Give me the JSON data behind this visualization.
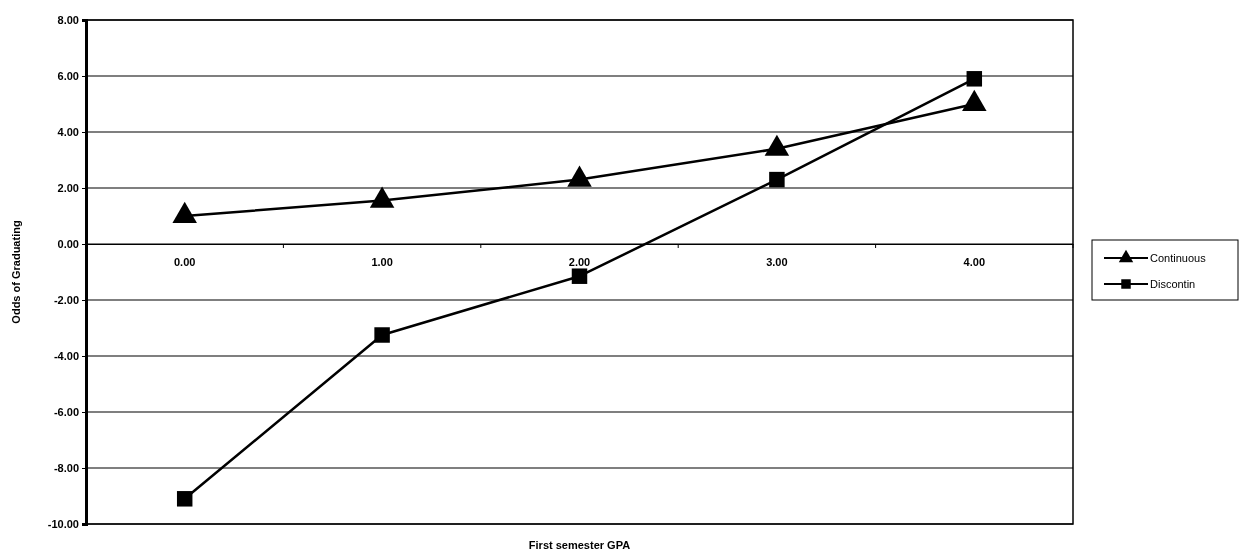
{
  "chart_data": {
    "type": "line",
    "xlabel": "First semester GPA",
    "ylabel": "Odds of Graduating",
    "categories": [
      "0.00",
      "1.00",
      "2.00",
      "3.00",
      "4.00"
    ],
    "series": [
      {
        "name": "Continuous",
        "color": "#000000",
        "marker": "triangle",
        "values": [
          1.0,
          1.55,
          2.3,
          3.4,
          5.0
        ]
      },
      {
        "name": "Discontin",
        "color": "#000000",
        "marker": "square",
        "values": [
          -9.1,
          -3.25,
          -1.15,
          2.3,
          5.9
        ]
      }
    ],
    "ylim": [
      -10,
      8
    ],
    "yticks": [
      {
        "value": -10,
        "label": "-10.00"
      },
      {
        "value": -8,
        "label": "-8.00"
      },
      {
        "value": -6,
        "label": "-6.00"
      },
      {
        "value": -4,
        "label": "-4.00"
      },
      {
        "value": -2,
        "label": "-2.00"
      },
      {
        "value": 0,
        "label": "0.00"
      },
      {
        "value": 2,
        "label": "2.00"
      },
      {
        "value": 4,
        "label": "4.00"
      },
      {
        "value": 6,
        "label": "6.00"
      },
      {
        "value": 8,
        "label": "8.00"
      }
    ],
    "grid": "y",
    "legend": "right",
    "line_style": "solid"
  }
}
